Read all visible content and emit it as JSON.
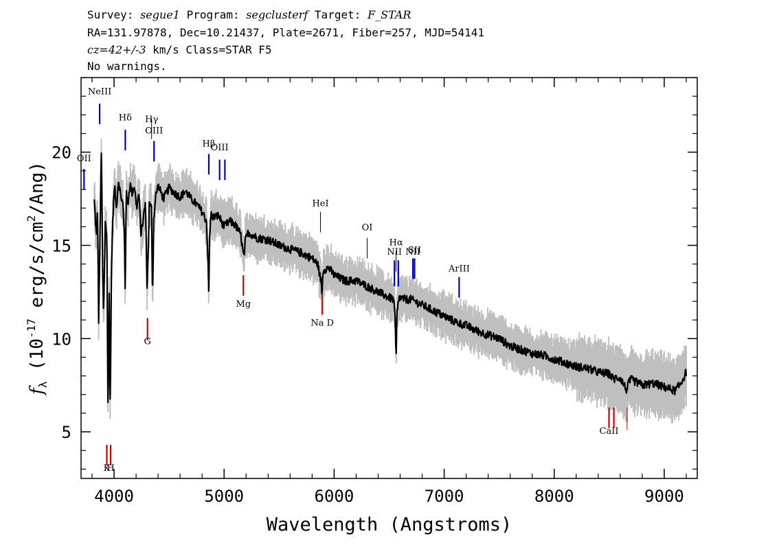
{
  "header": {
    "line1": {
      "survey_label": "Survey:",
      "survey": "segue1",
      "program_label": "Program:",
      "program": "segclusterf",
      "target_label": "Target:",
      "target": "F_STAR"
    },
    "line2": "RA=131.97878, Dec=10.21437, Plate=2671, Fiber=257, MJD=54141",
    "line3": {
      "cz": "cz=42+/-3",
      "rest": " km/s Class=STAR F5"
    },
    "line4": "No warnings."
  },
  "chart_data": {
    "type": "line",
    "title": "",
    "xlabel": "Wavelength (Angstroms)",
    "ylabel_symbol": "f",
    "ylabel_subscript": "λ",
    "ylabel_text_a": " (10",
    "ylabel_exp1": "-17",
    "ylabel_text_b": " erg/s/cm",
    "ylabel_exp2": "2",
    "ylabel_text_c": "/Ang)",
    "xlim": [
      3700,
      9300
    ],
    "ylim": [
      2.5,
      24
    ],
    "xticks": [
      4000,
      5000,
      6000,
      7000,
      8000,
      9000
    ],
    "yticks": [
      5,
      10,
      15,
      20
    ],
    "colors": {
      "flux": "#000000",
      "error": "#bfbfbf",
      "emission": "#0000cc",
      "absorption": "#cc0000",
      "faint_line": "#000000"
    },
    "spectrum": {
      "x": [
        3820,
        3840,
        3850,
        3860,
        3875,
        3885,
        3895,
        3905,
        3920,
        3935,
        3945,
        3955,
        3965,
        3975,
        3985,
        3995,
        4005,
        4020,
        4040,
        4060,
        4080,
        4095,
        4101,
        4110,
        4125,
        4145,
        4165,
        4185,
        4205,
        4225,
        4245,
        4265,
        4285,
        4300,
        4310,
        4320,
        4340,
        4350,
        4360,
        4380,
        4400,
        4450,
        4500,
        4550,
        4600,
        4650,
        4700,
        4750,
        4800,
        4840,
        4855,
        4861,
        4868,
        4880,
        4900,
        4950,
        5000,
        5050,
        5100,
        5150,
        5175,
        5183,
        5190,
        5220,
        5300,
        5400,
        5500,
        5600,
        5700,
        5800,
        5850,
        5880,
        5890,
        5900,
        5950,
        6000,
        6100,
        6200,
        6300,
        6400,
        6500,
        6540,
        6555,
        6563,
        6570,
        6590,
        6650,
        6700,
        6800,
        6900,
        7000,
        7100,
        7200,
        7300,
        7400,
        7500,
        7600,
        7700,
        7800,
        7900,
        8000,
        8100,
        8200,
        8300,
        8400,
        8500,
        8542,
        8560,
        8600,
        8662,
        8680,
        8700,
        8800,
        8900,
        9000,
        9100,
        9150,
        9200
      ],
      "y": [
        17.4,
        15.5,
        17.0,
        11.0,
        16.5,
        20.5,
        14.0,
        11.2,
        16.2,
        15.5,
        5.5,
        13.0,
        6.0,
        13.2,
        15.8,
        17.3,
        18.2,
        17.0,
        18.5,
        17.7,
        17.2,
        15.5,
        12.2,
        17.8,
        17.2,
        18.3,
        17.8,
        18.2,
        17.0,
        17.8,
        15.6,
        16.4,
        17.3,
        12.8,
        14.5,
        17.2,
        17.0,
        12.0,
        16.4,
        17.7,
        18.2,
        17.5,
        18.1,
        17.8,
        17.6,
        17.9,
        17.5,
        17.2,
        16.8,
        16.3,
        14.0,
        12.2,
        15.3,
        16.7,
        16.5,
        16.6,
        16.0,
        16.3,
        16.1,
        15.6,
        14.5,
        14.3,
        15.2,
        15.7,
        15.4,
        15.3,
        15.0,
        14.8,
        14.6,
        14.3,
        14.0,
        13.1,
        12.4,
        13.7,
        13.8,
        13.4,
        13.1,
        13.1,
        12.8,
        12.5,
        12.2,
        12.1,
        11.0,
        8.7,
        11.3,
        12.2,
        12.1,
        12.1,
        11.8,
        11.5,
        11.2,
        10.9,
        10.7,
        10.4,
        10.2,
        10.0,
        9.6,
        9.4,
        9.2,
        9.1,
        8.9,
        8.7,
        8.5,
        8.4,
        8.2,
        8.1,
        7.8,
        7.9,
        7.9,
        7.2,
        7.7,
        7.8,
        7.5,
        7.6,
        7.4,
        7.2,
        7.6,
        8.2
      ]
    },
    "line_markers": [
      {
        "label": "NeIII",
        "wavelength": 3869,
        "kind": "emission",
        "label_y": 23.1,
        "top": 22.6,
        "bottom": 21.5
      },
      {
        "label": "OII",
        "wavelength": 3727,
        "kind": "emission",
        "label_y": 19.5,
        "top": 19.1,
        "bottom": 18.0
      },
      {
        "label": "Hδ",
        "wavelength": 4102,
        "kind": "emission",
        "label_y": 21.7,
        "top": 21.2,
        "bottom": 20.1
      },
      {
        "label": "Hγ",
        "wavelength": 4341,
        "kind": "faint",
        "label_y": 21.6,
        "top": 21.8,
        "bottom": 20.7
      },
      {
        "label": "OIII",
        "wavelength": 4363,
        "kind": "emission",
        "label_y": 21.0,
        "top": 20.6,
        "bottom": 19.5
      },
      {
        "label": "Hβ",
        "wavelength": 4861,
        "kind": "emission",
        "label_y": 20.3,
        "top": 19.9,
        "bottom": 18.8
      },
      {
        "label": "OIII",
        "wavelength": 4959,
        "kind": "emission",
        "label_y": 20.1,
        "top": 19.6,
        "bottom": 18.5
      },
      {
        "label": "",
        "wavelength": 5007,
        "kind": "emission",
        "label_y": 0,
        "top": 19.6,
        "bottom": 18.5
      },
      {
        "label": "HeI",
        "wavelength": 5876,
        "kind": "faint",
        "label_y": 17.1,
        "top": 16.8,
        "bottom": 15.7
      },
      {
        "label": "OI",
        "wavelength": 6300,
        "kind": "faint",
        "label_y": 15.8,
        "top": 15.4,
        "bottom": 14.3
      },
      {
        "label": "NII",
        "wavelength": 6548,
        "kind": "emission",
        "label_y": 14.5,
        "top": 14.2,
        "bottom": 12.8
      },
      {
        "label": "Hα",
        "wavelength": 6563,
        "kind": "faint",
        "label_y": 15.0,
        "top": 14.7,
        "bottom": 13.6
      },
      {
        "label": "",
        "wavelength": 6583,
        "kind": "emission",
        "label_y": 0,
        "top": 14.2,
        "bottom": 12.8
      },
      {
        "label": "NII",
        "wavelength": 6716,
        "kind": "emission",
        "label_y": 14.5,
        "top": 14.3,
        "bottom": 13.2
      },
      {
        "label": "SII",
        "wavelength": 6731,
        "kind": "emission",
        "label_y": 14.6,
        "top": 14.3,
        "bottom": 13.2
      },
      {
        "label": "ArIII",
        "wavelength": 7136,
        "kind": "emission",
        "label_y": 13.6,
        "top": 13.3,
        "bottom": 12.2
      },
      {
        "label": "G",
        "wavelength": 4304,
        "kind": "absorption",
        "label_y": 9.7,
        "top": 11.1,
        "bottom": 9.9
      },
      {
        "label": "Mg",
        "wavelength": 5175,
        "kind": "absorption",
        "label_y": 11.7,
        "top": 13.4,
        "bottom": 12.3
      },
      {
        "label": "Na D",
        "wavelength": 5893,
        "kind": "absorption",
        "label_y": 10.7,
        "top": 12.4,
        "bottom": 11.3
      },
      {
        "label": "K",
        "wavelength": 3934,
        "kind": "absorption",
        "label_y": 2.9,
        "top": 4.3,
        "bottom": 3.2
      },
      {
        "label": "H",
        "wavelength": 3969,
        "kind": "absorption",
        "label_y": 2.9,
        "top": 4.3,
        "bottom": 3.2
      },
      {
        "label": "CaII",
        "wavelength": 8498,
        "kind": "absorption",
        "label_y": 4.9,
        "top": 6.3,
        "bottom": 5.2
      },
      {
        "label": "",
        "wavelength": 8542,
        "kind": "absorption",
        "label_y": 0,
        "top": 6.3,
        "bottom": 5.2
      },
      {
        "label": "",
        "wavelength": 8662,
        "kind": "faint_red",
        "label_y": 0,
        "top": 6.3,
        "bottom": 5.1
      }
    ]
  }
}
